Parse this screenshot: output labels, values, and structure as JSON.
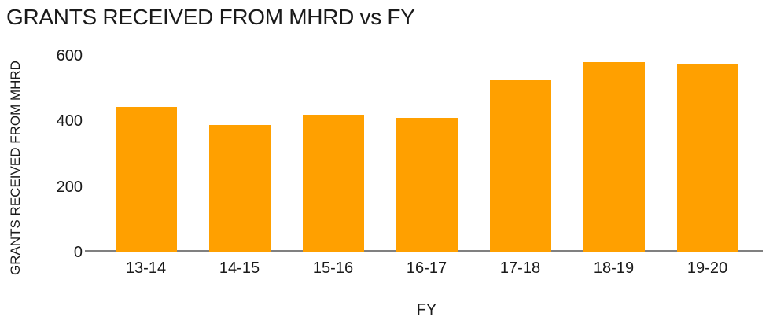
{
  "chart_data": {
    "type": "bar",
    "title": "GRANTS RECEIVED FROM MHRD vs FY",
    "xlabel": "FY",
    "ylabel": "GRANTS RECEIVED FROM MHRD",
    "categories": [
      "13-14",
      "14-15",
      "15-16",
      "16-17",
      "17-18",
      "18-19",
      "19-20"
    ],
    "values": [
      445,
      390,
      420,
      410,
      525,
      580,
      575
    ],
    "ylim": [
      0,
      600
    ],
    "yticks": [
      0,
      200,
      400,
      600
    ],
    "grid": false,
    "legend": "none",
    "colors": {
      "bar": "#FFA000",
      "axis_line": "#808080",
      "text": "#1a1a1a",
      "background": "#FFFFFF"
    }
  }
}
